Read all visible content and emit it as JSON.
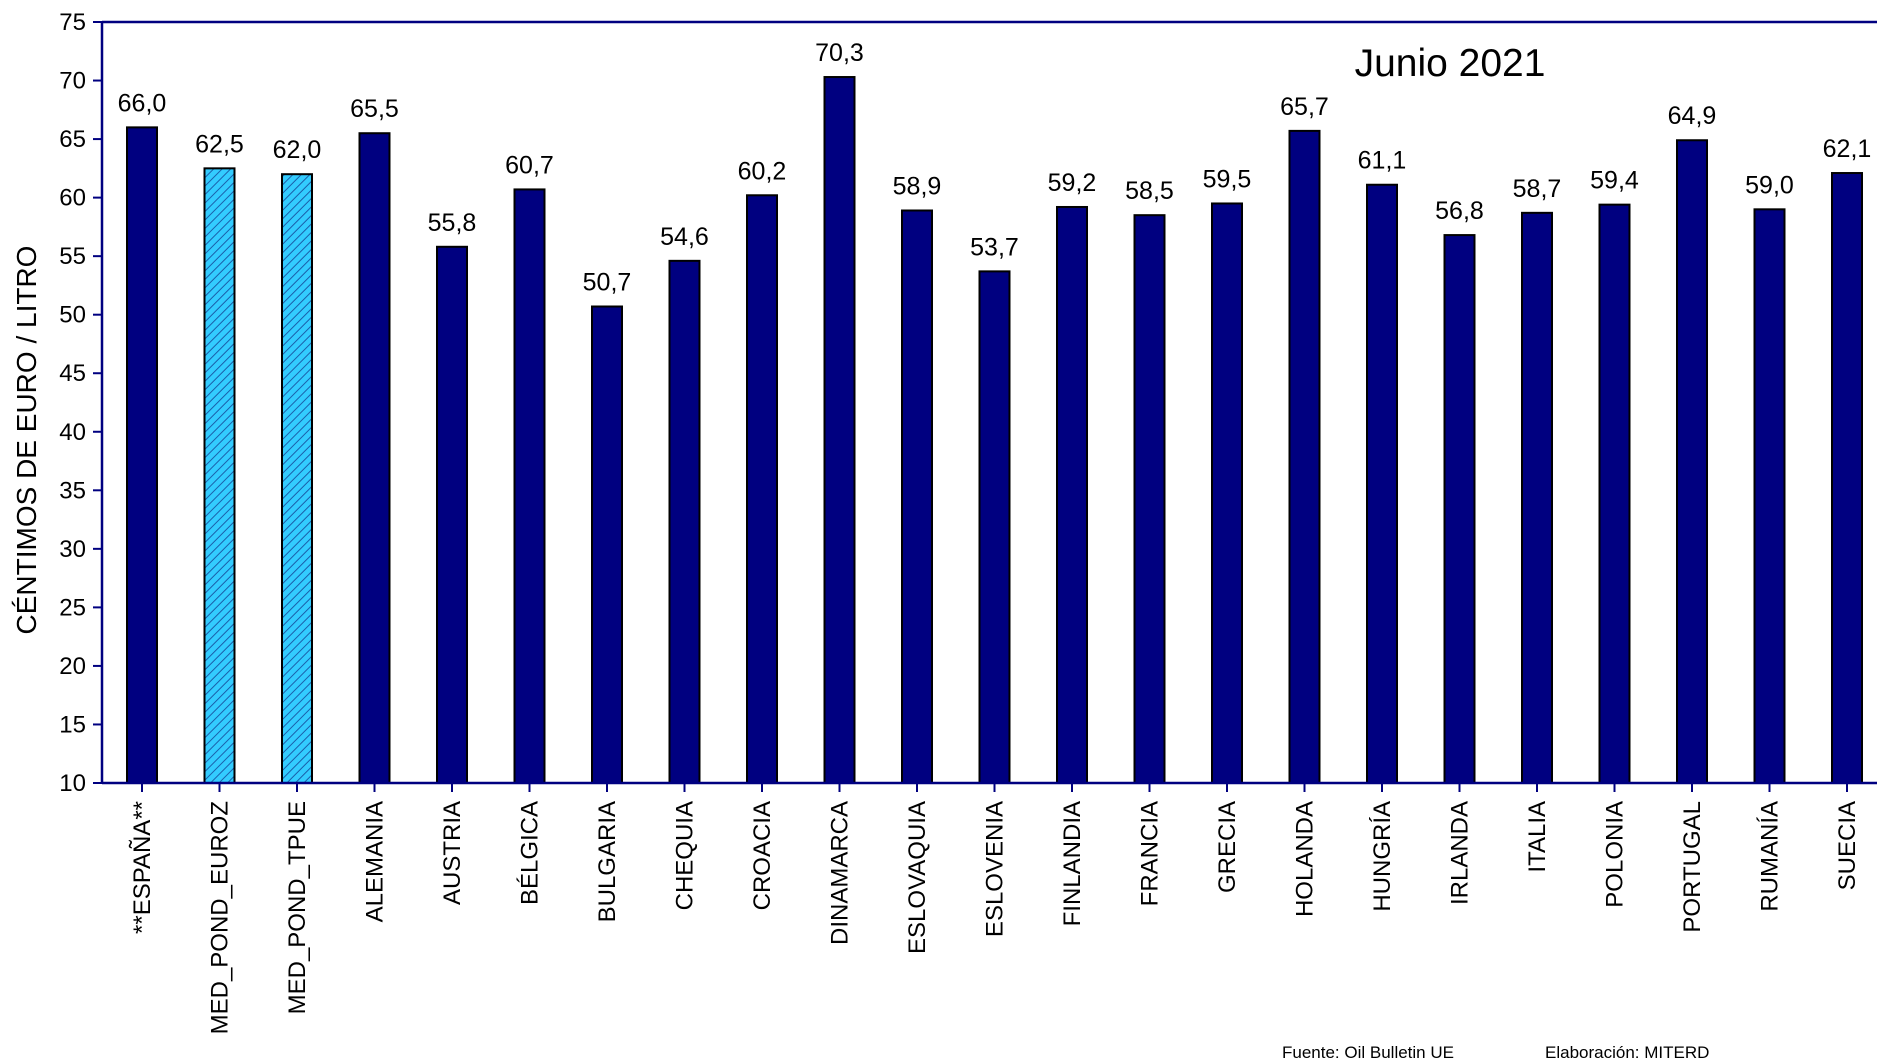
{
  "chart_data": {
    "type": "bar",
    "title": "Junio 2021",
    "ylabel": "CÉNTIMOS DE EURO / LITRO",
    "xlabel": "",
    "ylim": [
      10,
      75
    ],
    "yticks": [
      10,
      15,
      20,
      25,
      30,
      35,
      40,
      45,
      50,
      55,
      60,
      65,
      70,
      75
    ],
    "grid": false,
    "categories": [
      "**ESPAÑA**",
      "MED_POND_EUROZ",
      "MED_POND_TPUE",
      "ALEMANIA",
      "AUSTRIA",
      "BÉLGICA",
      "BULGARIA",
      "CHEQUIA",
      "CROACIA",
      "DINAMARCA",
      "ESLOVAQUIA",
      "ESLOVENIA",
      "FINLANDIA",
      "FRANCIA",
      "GRECIA",
      "HOLANDA",
      "HUNGRÍA",
      "IRLANDA",
      "ITALIA",
      "POLONIA",
      "PORTUGAL",
      "RUMANÍA",
      "SUECIA"
    ],
    "values": [
      66.0,
      62.5,
      62.0,
      65.5,
      55.8,
      60.7,
      50.7,
      54.6,
      60.2,
      70.3,
      58.9,
      53.7,
      59.2,
      58.5,
      59.5,
      65.7,
      61.1,
      56.8,
      58.7,
      59.4,
      64.9,
      59.0,
      62.1
    ],
    "value_labels": [
      "66,0",
      "62,5",
      "62,0",
      "65,5",
      "55,8",
      "60,7",
      "50,7",
      "54,6",
      "60,2",
      "70,3",
      "58,9",
      "53,7",
      "59,2",
      "58,5",
      "59,5",
      "65,7",
      "61,1",
      "56,8",
      "58,7",
      "59,4",
      "64,9",
      "59,0",
      "62,1"
    ],
    "bar_styles": [
      "solid",
      "hatched",
      "hatched",
      "solid",
      "solid",
      "solid",
      "solid",
      "solid",
      "solid",
      "solid",
      "solid",
      "solid",
      "solid",
      "solid",
      "solid",
      "solid",
      "solid",
      "solid",
      "solid",
      "solid",
      "solid",
      "solid",
      "solid"
    ],
    "colors": {
      "solid_fill": "#000080",
      "hatched_fill": "#33CCFF",
      "hatch_line": "#1a5faa",
      "axis": "#000080",
      "bar_outline": "#000000"
    }
  },
  "footer": {
    "source": "Fuente: Oil Bulletin UE",
    "credit": "Elaboración: MITERD"
  }
}
